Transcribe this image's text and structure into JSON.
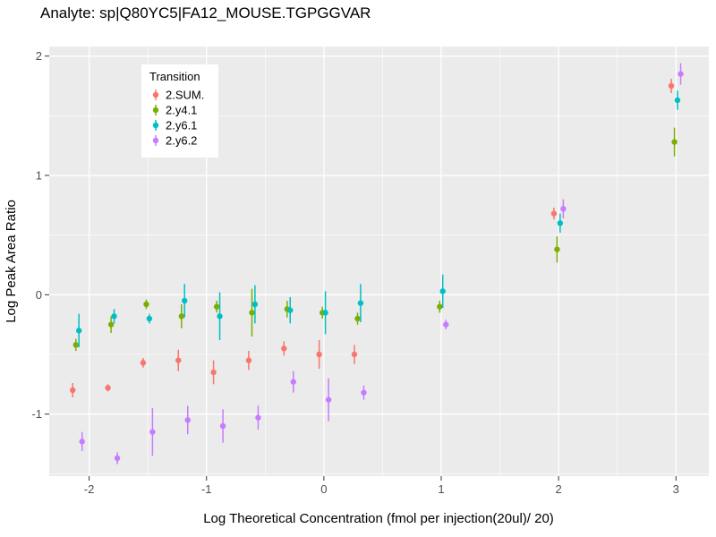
{
  "chart_data": {
    "type": "scatter",
    "title": "Analyte: sp|Q80YC5|FA12_MOUSE.TGPGGVAR",
    "xlabel": "Log Theoretical Concentration (fmol per injection(20ul)/ 20)",
    "ylabel": "Log Peak Area Ratio",
    "xlim": [
      -2.34,
      3.28
    ],
    "ylim": [
      -1.52,
      2.08
    ],
    "x_major_ticks": [
      -2,
      -1,
      0,
      1,
      2,
      3
    ],
    "y_major_ticks": [
      -1,
      0,
      1,
      2
    ],
    "x_minor_ticks": [
      -1.5,
      -0.5,
      0.5,
      1.5,
      2.5
    ],
    "y_minor_ticks": [
      -1.5,
      -0.5,
      0.5,
      1.5
    ],
    "panel_bg": "#EBEBEB",
    "grid_color": "#FFFFFF",
    "tick_label_color": "#4D4D4D",
    "legend": {
      "title": "Transition",
      "position": "inside-top-left"
    },
    "dodge": [
      -0.04,
      -0.013,
      0.013,
      0.04
    ],
    "series": [
      {
        "name": "2.SUM.",
        "color": "#F8766D",
        "points": [
          {
            "x": -2.1,
            "y": -0.8,
            "err": 0.06
          },
          {
            "x": -1.8,
            "y": -0.78,
            "err": 0.03
          },
          {
            "x": -1.5,
            "y": -0.57,
            "err": 0.04
          },
          {
            "x": -1.2,
            "y": -0.55,
            "err": 0.09
          },
          {
            "x": -0.9,
            "y": -0.65,
            "err": 0.1
          },
          {
            "x": -0.6,
            "y": -0.55,
            "err": 0.08
          },
          {
            "x": -0.3,
            "y": -0.45,
            "err": 0.06
          },
          {
            "x": 0.0,
            "y": -0.5,
            "err": 0.12
          },
          {
            "x": 0.3,
            "y": -0.5,
            "err": 0.08
          },
          {
            "x": 2.0,
            "y": 0.68,
            "err": 0.05
          },
          {
            "x": 3.0,
            "y": 1.75,
            "err": 0.06
          }
        ]
      },
      {
        "name": "2.y4.1",
        "color": "#7CAE00",
        "points": [
          {
            "x": -2.1,
            "y": -0.42,
            "err": 0.05
          },
          {
            "x": -1.8,
            "y": -0.25,
            "err": 0.07
          },
          {
            "x": -1.5,
            "y": -0.08,
            "err": 0.04
          },
          {
            "x": -1.2,
            "y": -0.18,
            "err": 0.1
          },
          {
            "x": -0.9,
            "y": -0.1,
            "err": 0.05
          },
          {
            "x": -0.6,
            "y": -0.15,
            "err": 0.2
          },
          {
            "x": -0.3,
            "y": -0.12,
            "err": 0.07
          },
          {
            "x": 0.0,
            "y": -0.15,
            "err": 0.05
          },
          {
            "x": 0.3,
            "y": -0.2,
            "err": 0.05
          },
          {
            "x": 1.0,
            "y": -0.1,
            "err": 0.05
          },
          {
            "x": 2.0,
            "y": 0.38,
            "err": 0.11
          },
          {
            "x": 3.0,
            "y": 1.28,
            "err": 0.12
          }
        ]
      },
      {
        "name": "2.y6.1",
        "color": "#00BFC4",
        "points": [
          {
            "x": -2.1,
            "y": -0.3,
            "err": 0.14
          },
          {
            "x": -1.8,
            "y": -0.18,
            "err": 0.06
          },
          {
            "x": -1.5,
            "y": -0.2,
            "err": 0.04
          },
          {
            "x": -1.2,
            "y": -0.05,
            "err": 0.14
          },
          {
            "x": -0.9,
            "y": -0.18,
            "err": 0.2
          },
          {
            "x": -0.6,
            "y": -0.08,
            "err": 0.16
          },
          {
            "x": -0.3,
            "y": -0.13,
            "err": 0.11
          },
          {
            "x": 0.0,
            "y": -0.15,
            "err": 0.18
          },
          {
            "x": 0.3,
            "y": -0.07,
            "err": 0.16
          },
          {
            "x": 1.0,
            "y": 0.03,
            "err": 0.14
          },
          {
            "x": 2.0,
            "y": 0.6,
            "err": 0.08
          },
          {
            "x": 3.0,
            "y": 1.63,
            "err": 0.08
          }
        ]
      },
      {
        "name": "2.y6.2",
        "color": "#C77CFF",
        "points": [
          {
            "x": -2.1,
            "y": -1.23,
            "err": 0.08
          },
          {
            "x": -1.8,
            "y": -1.37,
            "err": 0.05
          },
          {
            "x": -1.5,
            "y": -1.15,
            "err": 0.2
          },
          {
            "x": -1.2,
            "y": -1.05,
            "err": 0.12
          },
          {
            "x": -0.9,
            "y": -1.1,
            "err": 0.14
          },
          {
            "x": -0.6,
            "y": -1.03,
            "err": 0.1
          },
          {
            "x": -0.3,
            "y": -0.73,
            "err": 0.09
          },
          {
            "x": 0.0,
            "y": -0.88,
            "err": 0.18
          },
          {
            "x": 0.3,
            "y": -0.82,
            "err": 0.06
          },
          {
            "x": 1.0,
            "y": -0.25,
            "err": 0.04
          },
          {
            "x": 2.0,
            "y": 0.72,
            "err": 0.08
          },
          {
            "x": 3.0,
            "y": 1.85,
            "err": 0.09
          }
        ]
      }
    ]
  }
}
